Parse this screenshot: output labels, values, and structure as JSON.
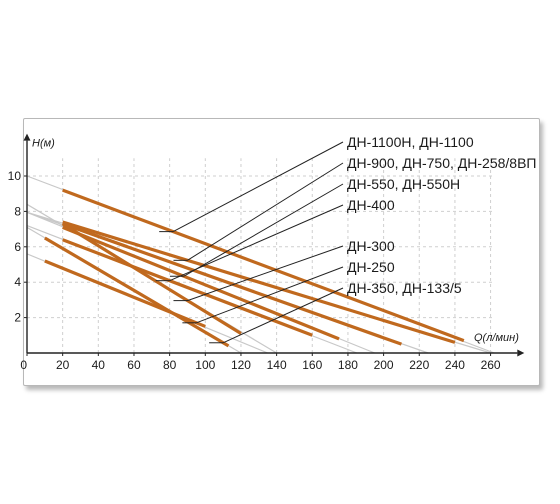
{
  "chart_data": {
    "type": "line",
    "xlabel": "Q(л/мин)",
    "ylabel": "H(м)",
    "xlim": [
      0,
      275
    ],
    "ylim": [
      0,
      12
    ],
    "x_ticks": [
      0,
      20,
      40,
      60,
      80,
      100,
      120,
      140,
      160,
      180,
      200,
      220,
      240,
      260
    ],
    "y_ticks": [
      2,
      4,
      6,
      8,
      10
    ],
    "grid": true,
    "colors": {
      "series": "#c0691e",
      "extension": "#c8c8c8",
      "leader": "#222222",
      "grid": "#cfcfcf"
    },
    "legend_labels": [
      "ДН-1100Н, ДН-1100",
      "ДН-900, ДН-750, ДН-258/8ВП",
      "ДН-550, ДН-550Н",
      "ДН-400",
      "ДН-300",
      "ДН-250",
      "ДН-350, ДН-133/5"
    ],
    "series": [
      {
        "label_index": 0,
        "x": [
          20,
          245
        ],
        "y": [
          9.2,
          0.7
        ],
        "ext_x": [
          0,
          262
        ],
        "ext_y": [
          10.0,
          0.0
        ],
        "leader_at_x": 82
      },
      {
        "label_index": 1,
        "x": [
          20,
          240
        ],
        "y": [
          7.4,
          0.6
        ],
        "ext_x": [
          0,
          260
        ],
        "ext_y": [
          7.95,
          0.0
        ],
        "leader_at_x": 90
      },
      {
        "label_index": 1,
        "x": [
          20,
          210
        ],
        "y": [
          7.3,
          0.5
        ],
        "ext_x": [
          0,
          225
        ],
        "ext_y": [
          7.95,
          0.0
        ],
        "leader_at_x": null
      },
      {
        "label_index": 2,
        "x": [
          20,
          175
        ],
        "y": [
          7.1,
          0.8
        ],
        "ext_x": [
          0,
          195
        ],
        "ext_y": [
          7.95,
          0.0
        ],
        "leader_at_x": 88
      },
      {
        "label_index": 3,
        "x": [
          20,
          160
        ],
        "y": [
          6.4,
          1.0
        ],
        "ext_x": [
          0,
          185
        ],
        "ext_y": [
          7.2,
          0.0
        ],
        "leader_at_x": 80
      },
      {
        "label_index": 4,
        "x": [
          20,
          120
        ],
        "y": [
          7.3,
          1.1
        ],
        "ext_x": [
          0,
          140
        ],
        "ext_y": [
          8.4,
          0.0
        ],
        "leader_at_x": 90
      },
      {
        "label_index": 5,
        "x": [
          10,
          100
        ],
        "y": [
          5.2,
          1.5
        ],
        "ext_x": [
          0,
          135
        ],
        "ext_y": [
          5.6,
          0.0
        ],
        "leader_at_x": 95
      },
      {
        "label_index": 6,
        "x": [
          10,
          113
        ],
        "y": [
          6.5,
          0.4
        ],
        "ext_x": [
          0,
          120
        ],
        "ext_y": [
          7.1,
          0.0
        ],
        "leader_at_x": 110
      }
    ]
  }
}
